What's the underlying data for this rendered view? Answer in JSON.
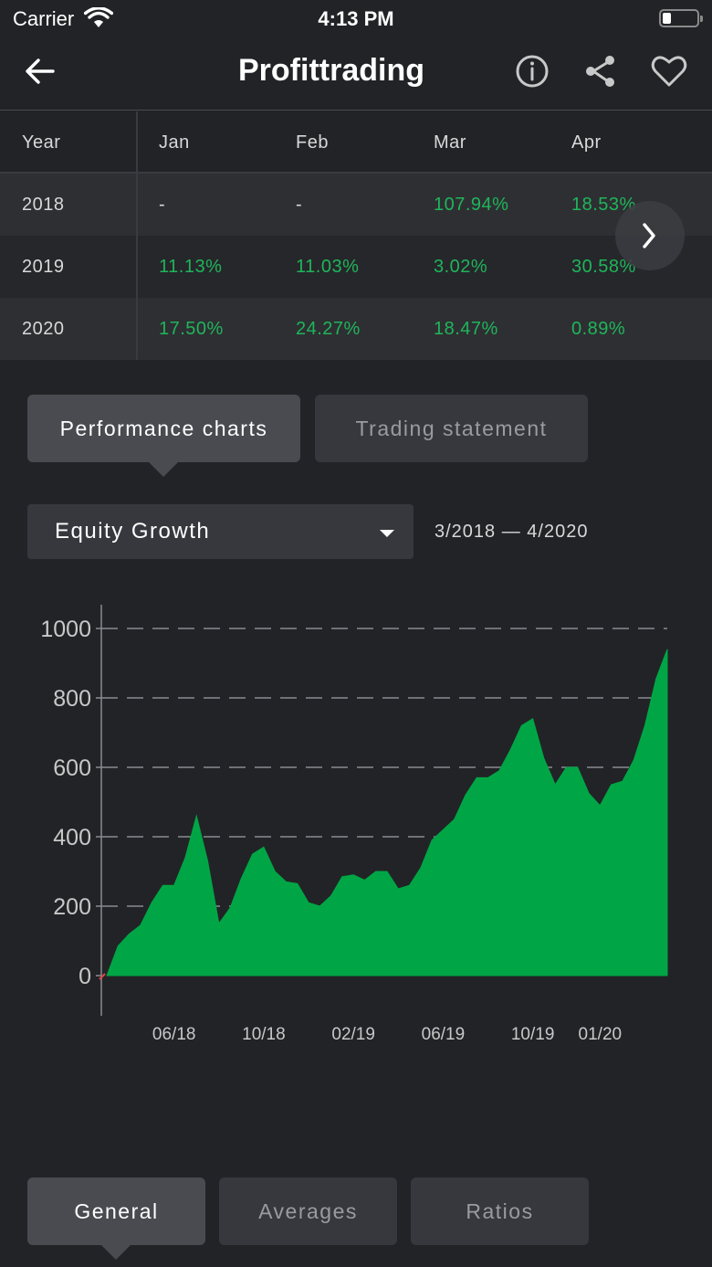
{
  "status_bar": {
    "carrier": "Carrier",
    "time": "4:13 PM"
  },
  "nav": {
    "title": "Profittrading",
    "back_icon": "arrow-left-icon",
    "info_icon": "info-icon",
    "share_icon": "share-icon",
    "favorite_icon": "heart-icon"
  },
  "table": {
    "headers": [
      "Year",
      "Jan",
      "Feb",
      "Mar",
      "Apr"
    ],
    "rows": [
      {
        "year": "2018",
        "values": [
          "-",
          "-",
          "107.94%",
          "18.53%"
        ]
      },
      {
        "year": "2019",
        "values": [
          "11.13%",
          "11.03%",
          "3.02%",
          "30.58%"
        ]
      },
      {
        "year": "2020",
        "values": [
          "17.50%",
          "24.27%",
          "18.47%",
          "0.89%"
        ]
      }
    ]
  },
  "tabs": {
    "performance": "Performance charts",
    "statement": "Trading statement"
  },
  "dropdown": {
    "selected": "Equity Growth"
  },
  "date_range": "3/2018 — 4/2020",
  "chart_data": {
    "type": "area",
    "title": "",
    "xlabel": "",
    "ylabel": "",
    "ylim": [
      0,
      1000
    ],
    "yticks": [
      "0",
      "200",
      "400",
      "600",
      "800",
      "1000"
    ],
    "xticks": [
      "06/18",
      "10/18",
      "02/19",
      "06/19",
      "10/19",
      "01/20"
    ],
    "grid": "horizontal-dashed",
    "fill_color": "#00a645",
    "series": [
      {
        "x": [
          "03/18",
          "04/18",
          "05/18",
          "06/18",
          "07/18",
          "08/18",
          "09/18",
          "10/18",
          "11/18",
          "12/18",
          "01/19",
          "02/19",
          "03/19",
          "04/19",
          "05/19",
          "06/19",
          "07/19",
          "08/19",
          "09/19",
          "10/19",
          "11/19",
          "12/19",
          "01/20",
          "02/20",
          "03/20",
          "04/20"
        ],
        "values": [
          0,
          120,
          210,
          260,
          460,
          150,
          280,
          370,
          270,
          210,
          230,
          290,
          300,
          250,
          310,
          420,
          520,
          570,
          650,
          740,
          550,
          600,
          490,
          560,
          720,
          940
        ]
      }
    ]
  },
  "bottom_tabs": {
    "general": "General",
    "averages": "Averages",
    "ratios": "Ratios"
  }
}
